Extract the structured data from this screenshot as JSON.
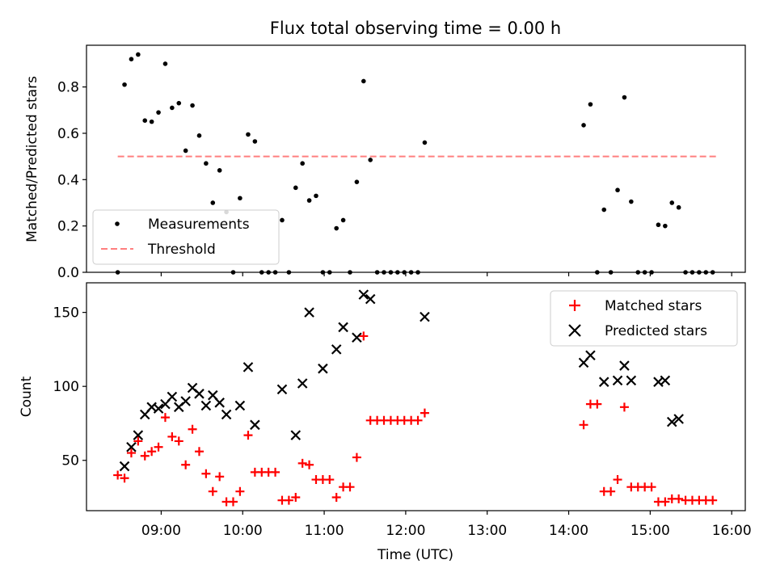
{
  "title": "Flux total observing time = 0.00 h",
  "xlabel": "Time (UTC)",
  "x_ticks": [
    "09:00",
    "10:00",
    "11:00",
    "12:00",
    "13:00",
    "14:00",
    "15:00",
    "16:00"
  ],
  "chart_data": [
    {
      "type": "scatter",
      "ylabel": "Matched/Predicted stars",
      "xlim": [
        "08:05",
        "16:10"
      ],
      "ylim": [
        0,
        0.98
      ],
      "y_ticks": [
        "0.0",
        "0.2",
        "0.4",
        "0.6",
        "0.8"
      ],
      "legend_position": "lower-left",
      "legend": [
        "Measurements",
        "Threshold"
      ],
      "series": [
        {
          "name": "Measurements",
          "color": "#000000",
          "x": [
            "08:28",
            "08:33",
            "08:38",
            "08:43",
            "08:48",
            "08:53",
            "08:58",
            "09:03",
            "09:08",
            "09:13",
            "09:18",
            "09:23",
            "09:28",
            "09:33",
            "09:38",
            "09:43",
            "09:48",
            "09:53",
            "09:58",
            "10:04",
            "10:09",
            "10:14",
            "10:19",
            "10:24",
            "10:29",
            "10:34",
            "10:39",
            "10:44",
            "10:49",
            "10:54",
            "10:59",
            "11:04",
            "11:09",
            "11:14",
            "11:19",
            "11:24",
            "11:29",
            "11:34",
            "11:39",
            "11:44",
            "11:49",
            "11:54",
            "11:59",
            "12:04",
            "12:09",
            "12:14",
            "14:11",
            "14:16",
            "14:21",
            "14:26",
            "14:31",
            "14:36",
            "14:41",
            "14:46",
            "14:51",
            "14:56",
            "15:01",
            "15:06",
            "15:11",
            "15:16",
            "15:21",
            "15:26",
            "15:31",
            "15:36",
            "15:41",
            "15:46"
          ],
          "y": [
            0,
            0.81,
            0.92,
            0.94,
            0.655,
            0.65,
            0.69,
            0.9,
            0.71,
            0.73,
            0.525,
            0.72,
            0.59,
            0.47,
            0.3,
            0.44,
            0.26,
            0,
            0.32,
            0.595,
            0.565,
            0,
            0,
            0,
            0.225,
            0,
            0.365,
            0.47,
            0.31,
            0.33,
            0,
            0,
            0.19,
            0.225,
            0,
            0.39,
            0.825,
            0.485,
            0,
            0,
            0,
            0,
            0,
            0,
            0,
            0.56,
            0.635,
            0.725,
            0,
            0.27,
            0,
            0.355,
            0.755,
            0.305,
            0,
            0,
            0,
            0.205,
            0.2,
            0.3,
            0.28,
            0,
            0,
            0,
            0,
            0
          ]
        },
        {
          "name": "Threshold",
          "color": "#ff7f7f",
          "x": [
            "08:28",
            "15:49"
          ],
          "y": [
            0.5,
            0.5
          ]
        }
      ]
    },
    {
      "type": "scatter",
      "ylabel": "Count",
      "xlim": [
        "08:05",
        "16:10"
      ],
      "ylim": [
        16,
        170
      ],
      "y_ticks": [
        "50",
        "100",
        "150"
      ],
      "legend_position": "upper-right",
      "legend": [
        "Matched stars",
        "Predicted stars"
      ],
      "series": [
        {
          "name": "Matched stars",
          "color": "#ff0000",
          "x": [
            "08:28",
            "08:33",
            "08:38",
            "08:43",
            "08:48",
            "08:53",
            "08:58",
            "09:03",
            "09:08",
            "09:13",
            "09:18",
            "09:23",
            "09:28",
            "09:33",
            "09:38",
            "09:43",
            "09:48",
            "09:53",
            "09:58",
            "10:04",
            "10:09",
            "10:14",
            "10:19",
            "10:24",
            "10:29",
            "10:34",
            "10:39",
            "10:44",
            "10:49",
            "10:54",
            "10:59",
            "11:04",
            "11:09",
            "11:14",
            "11:19",
            "11:24",
            "11:29",
            "11:34",
            "11:39",
            "11:44",
            "11:49",
            "11:54",
            "11:59",
            "12:04",
            "12:09",
            "12:14",
            "14:11",
            "14:16",
            "14:21",
            "14:26",
            "14:31",
            "14:36",
            "14:41",
            "14:46",
            "14:51",
            "14:56",
            "15:01",
            "15:06",
            "15:11",
            "15:16",
            "15:21",
            "15:26",
            "15:31",
            "15:36",
            "15:41",
            "15:46"
          ],
          "y": [
            40,
            38,
            55,
            63,
            53,
            56,
            59,
            79,
            66,
            63,
            47,
            71,
            56,
            41,
            29,
            39,
            22,
            22,
            29,
            67,
            42,
            42,
            42,
            42,
            23,
            23,
            25,
            48,
            47,
            37,
            37,
            37,
            25,
            32,
            32,
            52,
            134,
            77,
            77,
            77,
            77,
            77,
            77,
            77,
            77,
            82,
            74,
            88,
            88,
            29,
            29,
            37,
            86,
            32,
            32,
            32,
            32,
            22,
            22,
            24,
            24,
            23,
            23,
            23,
            23,
            23
          ]
        },
        {
          "name": "Predicted stars",
          "color": "#000000",
          "x": [
            "08:33",
            "08:38",
            "08:43",
            "08:48",
            "08:53",
            "08:58",
            "09:03",
            "09:08",
            "09:13",
            "09:18",
            "09:23",
            "09:28",
            "09:33",
            "09:38",
            "09:43",
            "09:48",
            "09:58",
            "10:04",
            "10:09",
            "10:29",
            "10:39",
            "10:44",
            "10:49",
            "10:59",
            "11:09",
            "11:14",
            "11:24",
            "11:29",
            "11:34",
            "12:14",
            "14:11",
            "14:16",
            "14:26",
            "14:36",
            "14:41",
            "14:46",
            "15:06",
            "15:11",
            "15:16",
            "15:21"
          ],
          "y": [
            46,
            59,
            67,
            81,
            86,
            85,
            88,
            93,
            86,
            90,
            99,
            95,
            87,
            94,
            89,
            81,
            87,
            113,
            74,
            98,
            67,
            102,
            150,
            112,
            125,
            140,
            133,
            162,
            159,
            147,
            116,
            121,
            103,
            104,
            114,
            104,
            103,
            104,
            76,
            78
          ]
        }
      ]
    }
  ]
}
